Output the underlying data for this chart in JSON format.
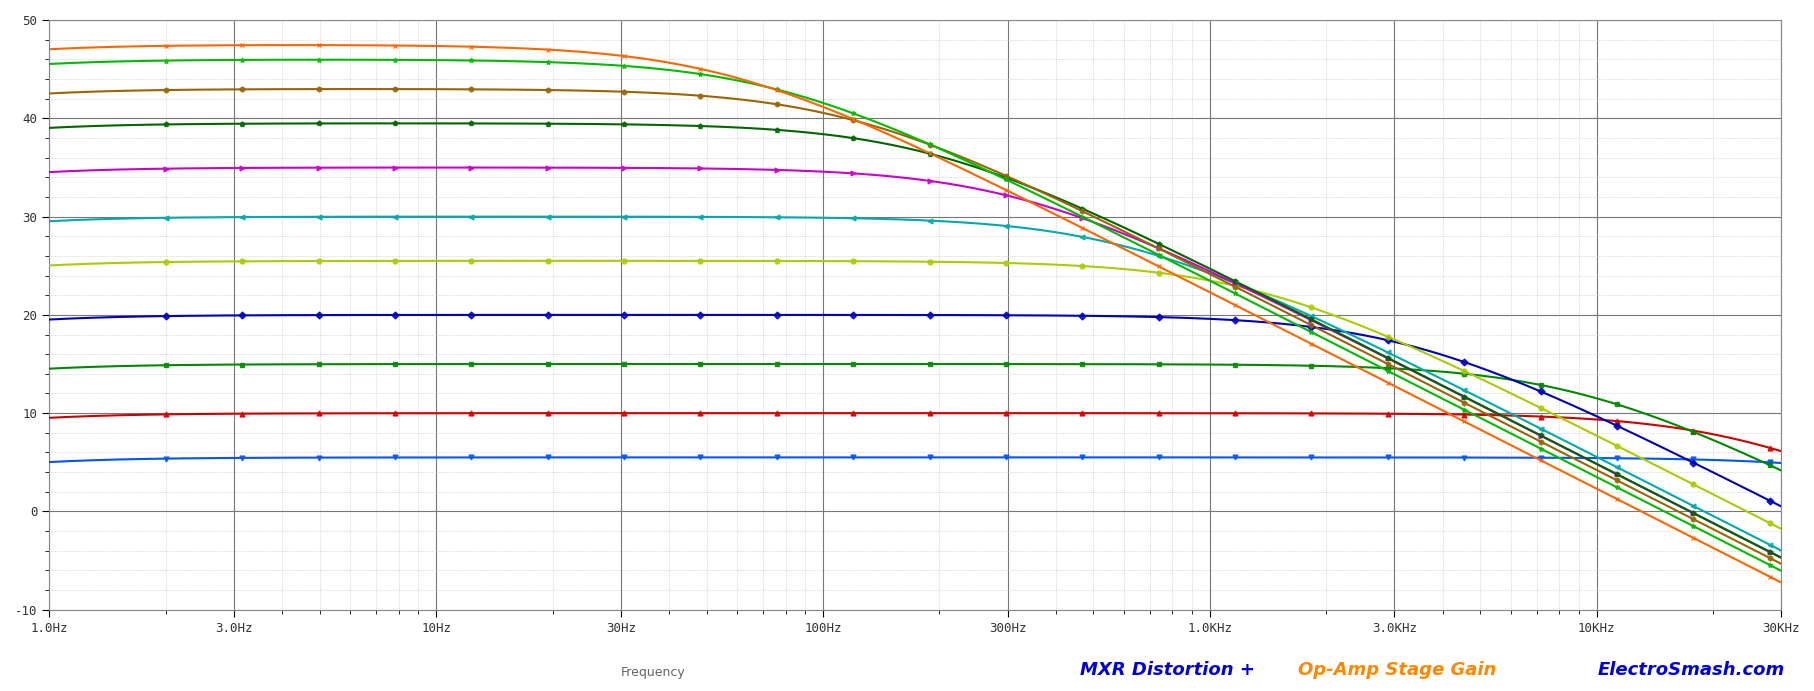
{
  "title_part1": "MXR Distortion +",
  "title_part2": "Op-Amp Stage Gain",
  "title_part3": "ElectroSmash.com",
  "xlabel": "Frequency",
  "xmin": 1.0,
  "xmax": 30000,
  "ymin": -10,
  "ymax": 50,
  "background_color": "#ffffff",
  "grid_major_color": "#777777",
  "grid_minor_color": "#bbbbbb",
  "f_hp": 0.34,
  "curves": [
    {
      "gain_db": 5.5,
      "f_lp": 80000,
      "color": "#0055ff",
      "marker": "v"
    },
    {
      "gain_db": 10.0,
      "f_lp": 25000,
      "color": "#cc0000",
      "marker": "^"
    },
    {
      "gain_db": 15.0,
      "f_lp": 9000,
      "color": "#008800",
      "marker": "s"
    },
    {
      "gain_db": 20.0,
      "f_lp": 3200,
      "color": "#0000bb",
      "marker": "D"
    },
    {
      "gain_db": 25.5,
      "f_lp": 1300,
      "color": "#aacc00",
      "marker": "o"
    },
    {
      "gain_db": 30.0,
      "f_lp": 600,
      "color": "#00aaaa",
      "marker": "<"
    },
    {
      "gain_db": 35.0,
      "f_lp": 310,
      "color": "#cc00cc",
      "marker": ">"
    },
    {
      "gain_db": 39.5,
      "f_lp": 185,
      "color": "#006600",
      "marker": "p"
    },
    {
      "gain_db": 43.0,
      "f_lp": 115,
      "color": "#996600",
      "marker": "h"
    },
    {
      "gain_db": 46.0,
      "f_lp": 75,
      "color": "#00bb00",
      "marker": "*"
    },
    {
      "gain_db": 47.5,
      "f_lp": 55,
      "color": "#ff6600",
      "marker": "x"
    }
  ],
  "x_ticks": [
    1,
    3,
    10,
    30,
    100,
    300,
    1000,
    3000,
    10000,
    30000
  ],
  "x_labels": [
    "1.0Hz",
    "3.0Hz",
    "10Hz",
    "30Hz",
    "100Hz",
    "300Hz",
    "1.0KHz",
    "3.0KHz",
    "10KHz",
    "30KHz"
  ],
  "y_ticks": [
    -10,
    0,
    10,
    20,
    30,
    40,
    50
  ],
  "title_color1": "#0000dd",
  "title_color2": "#ff8800",
  "title_color3": "#0000dd",
  "bottom_label_color": "#666666",
  "spine_color": "#888888"
}
